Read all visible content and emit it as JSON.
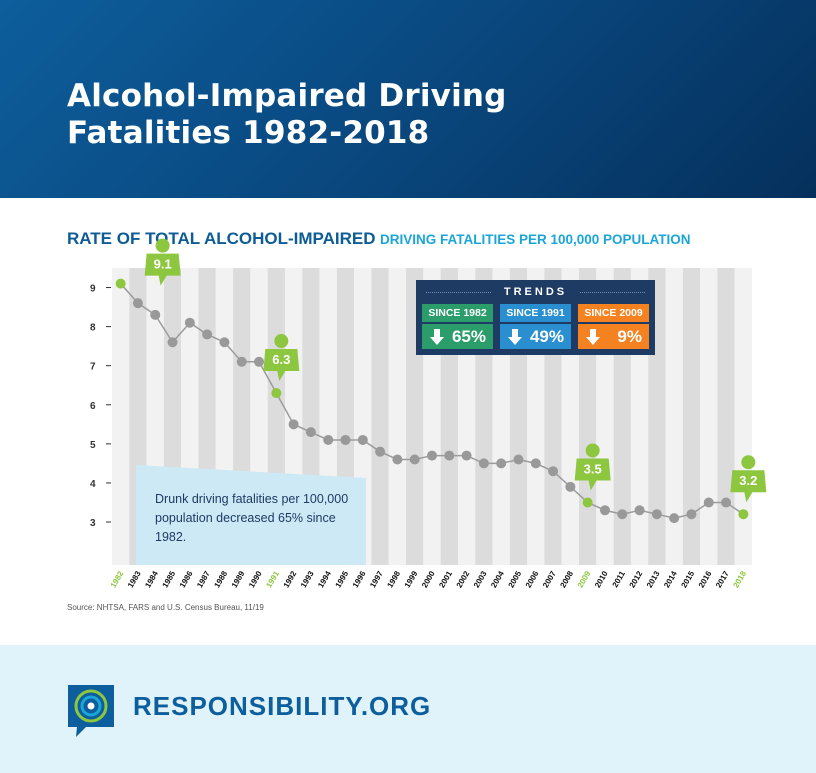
{
  "header": {
    "title_line1": "Alcohol-Impaired Driving",
    "title_line2": "Fatalities 1982-2018"
  },
  "subtitle": {
    "part1": "RATE OF TOTAL ALCOHOL-IMPAIRED",
    "part2": "DRIVING FATALITIES PER 100,000 POPULATION"
  },
  "colors": {
    "header_blue": "#0a4a82",
    "green": "#8dc63f",
    "line_gray": "#9b9b9b",
    "teal": "#2a9d6b",
    "blue": "#2a8fd0",
    "orange": "#f58220",
    "navy": "#1d3b63"
  },
  "trends": {
    "heading": "TRENDS",
    "items": [
      {
        "label": "SINCE 1982",
        "value": "65%",
        "color": "#2a9d6b",
        "icon": "down-arrow-icon"
      },
      {
        "label": "SINCE 1991",
        "value": "49%",
        "color": "#2a8fd0",
        "icon": "down-arrow-icon"
      },
      {
        "label": "SINCE 2009",
        "value": "9%",
        "color": "#f58220",
        "icon": "down-arrow-icon"
      }
    ]
  },
  "note": "Drunk driving fatalities per 100,000 population decreased 65% since 1982.",
  "source": "Source:  NHTSA, FARS and U.S. Census Bureau, 11/19",
  "footer": {
    "brand": "RESPONSIBILITY.ORG",
    "logo_icon": "target-speech-bubble-icon"
  },
  "chart_data": {
    "type": "line",
    "x": [
      "1982",
      "1983",
      "1984",
      "1985",
      "1986",
      "1987",
      "1988",
      "1989",
      "1990",
      "1991",
      "1992",
      "1993",
      "1994",
      "1995",
      "1996",
      "1997",
      "1998",
      "1999",
      "2000",
      "2001",
      "2002",
      "2003",
      "2004",
      "2005",
      "2006",
      "2007",
      "2008",
      "2009",
      "2010",
      "2011",
      "2012",
      "2013",
      "2014",
      "2015",
      "2016",
      "2017",
      "2018"
    ],
    "values": [
      9.1,
      8.6,
      8.3,
      7.6,
      8.1,
      7.8,
      7.6,
      7.1,
      7.1,
      6.3,
      5.5,
      5.3,
      5.1,
      5.1,
      5.1,
      4.8,
      4.6,
      4.6,
      4.7,
      4.7,
      4.7,
      4.5,
      4.5,
      4.6,
      4.5,
      4.3,
      3.9,
      3.5,
      3.3,
      3.2,
      3.3,
      3.2,
      3.1,
      3.2,
      3.5,
      3.5,
      3.2
    ],
    "yticks": [
      3,
      4,
      5,
      6,
      7,
      8,
      9
    ],
    "ylim": [
      1.9,
      9.5
    ],
    "highlight_years": [
      "1982",
      "1991",
      "2009",
      "2018"
    ],
    "callouts": [
      {
        "year": "1982",
        "label": "9.1"
      },
      {
        "year": "1991",
        "label": "6.3"
      },
      {
        "year": "2009",
        "label": "3.5"
      },
      {
        "year": "2018",
        "label": "3.2"
      }
    ],
    "grid": "alternating vertical bands"
  }
}
